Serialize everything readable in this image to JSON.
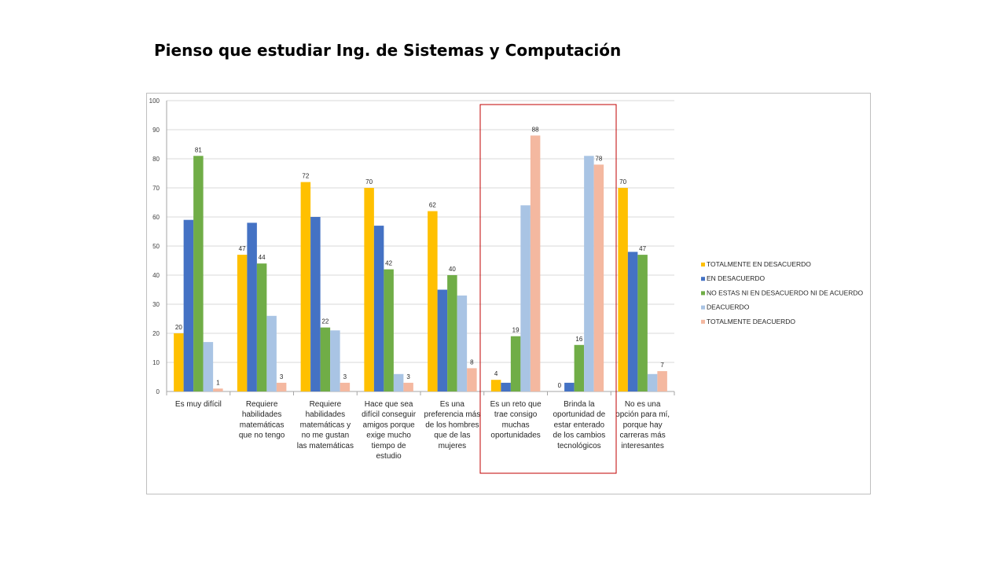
{
  "title": "Pienso que estudiar Ing. de Sistemas y Computación",
  "chart_data": {
    "type": "bar",
    "ylim": [
      0,
      100
    ],
    "yticks": [
      0,
      10,
      20,
      30,
      40,
      50,
      60,
      70,
      80,
      90,
      100
    ],
    "grid": true,
    "legend_position": "right",
    "categories": [
      [
        "Es muy difícil"
      ],
      [
        "Requiere",
        "habilidades",
        "matemáticas",
        "que no tengo"
      ],
      [
        "Requiere",
        "habilidades",
        "matemáticas y",
        "no me gustan",
        "las matemáticas"
      ],
      [
        "Hace que sea",
        "difícil conseguir",
        "amigos porque",
        "exige mucho",
        "tiempo de",
        "estudio"
      ],
      [
        "Es una",
        "preferencia más",
        "de los hombres",
        "que de las",
        "mujeres"
      ],
      [
        "Es un reto que",
        "trae consigo",
        "muchas",
        "oportunidades"
      ],
      [
        "Brinda la",
        "oportunidad de",
        "estar enterado",
        "de los cambios",
        "tecnológicos"
      ],
      [
        "No es una",
        "opción para mí,",
        "porque hay",
        "carreras más",
        "interesantes"
      ]
    ],
    "series": [
      {
        "name": "TOTALMENTE EN DESACUERDO",
        "color": "#FFC000",
        "values": [
          20,
          47,
          72,
          70,
          62,
          4,
          0,
          70
        ]
      },
      {
        "name": "EN DESACUERDO",
        "color": "#4472C4",
        "values": [
          59,
          58,
          60,
          57,
          35,
          3,
          3,
          48
        ]
      },
      {
        "name": "NO ESTAS NI EN DESACUERDO NI DE ACUERDO",
        "color": "#70AD47",
        "values": [
          81,
          44,
          22,
          42,
          40,
          19,
          16,
          47
        ]
      },
      {
        "name": "DEACUERDO",
        "color": "#A9C4E4",
        "values": [
          17,
          26,
          21,
          6,
          33,
          64,
          81,
          6
        ]
      },
      {
        "name": "TOTALMENTE DEACUERDO",
        "color": "#F4B8A0",
        "values": [
          1,
          3,
          3,
          3,
          8,
          88,
          78,
          7
        ]
      }
    ],
    "data_labels": [
      {
        "series": 0,
        "category": 0,
        "text": "20"
      },
      {
        "series": 2,
        "category": 0,
        "text": "81"
      },
      {
        "series": 4,
        "category": 0,
        "text": "1"
      },
      {
        "series": 0,
        "category": 1,
        "text": "47"
      },
      {
        "series": 2,
        "category": 1,
        "text": "44"
      },
      {
        "series": 4,
        "category": 1,
        "text": "3"
      },
      {
        "series": 0,
        "category": 2,
        "text": "72"
      },
      {
        "series": 2,
        "category": 2,
        "text": "22"
      },
      {
        "series": 4,
        "category": 2,
        "text": "3"
      },
      {
        "series": 0,
        "category": 3,
        "text": "70"
      },
      {
        "series": 2,
        "category": 3,
        "text": "42"
      },
      {
        "series": 4,
        "category": 3,
        "text": "3"
      },
      {
        "series": 0,
        "category": 4,
        "text": "62"
      },
      {
        "series": 2,
        "category": 4,
        "text": "40"
      },
      {
        "series": 4,
        "category": 4,
        "text": "8"
      },
      {
        "series": 0,
        "category": 5,
        "text": "4"
      },
      {
        "series": 2,
        "category": 5,
        "text": "19"
      },
      {
        "series": 4,
        "category": 5,
        "text": "88"
      },
      {
        "series": 0,
        "category": 6,
        "text": "0"
      },
      {
        "series": 2,
        "category": 6,
        "text": "16"
      },
      {
        "series": 4,
        "category": 6,
        "text": "78"
      },
      {
        "series": 0,
        "category": 7,
        "text": "70"
      },
      {
        "series": 2,
        "category": 7,
        "text": "47"
      },
      {
        "series": 4,
        "category": 7,
        "text": "7"
      }
    ],
    "highlight": {
      "categories": [
        5,
        6
      ],
      "color": "#C00000"
    }
  }
}
